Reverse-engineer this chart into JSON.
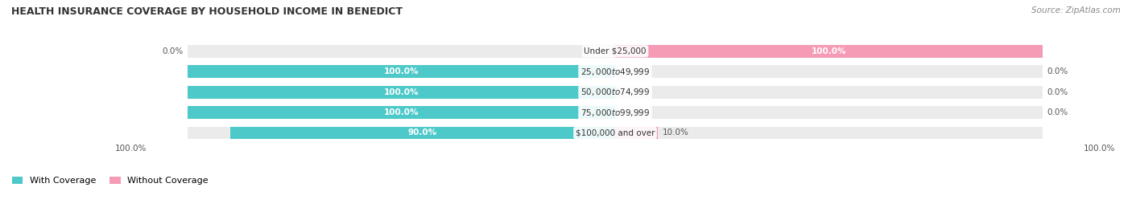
{
  "title": "HEALTH INSURANCE COVERAGE BY HOUSEHOLD INCOME IN BENEDICT",
  "source": "Source: ZipAtlas.com",
  "categories": [
    "Under $25,000",
    "$25,000 to $49,999",
    "$50,000 to $74,999",
    "$75,000 to $99,999",
    "$100,000 and over"
  ],
  "with_coverage": [
    0.0,
    100.0,
    100.0,
    100.0,
    90.0
  ],
  "without_coverage": [
    100.0,
    0.0,
    0.0,
    0.0,
    10.0
  ],
  "color_with": "#4ec9c9",
  "color_without": "#f59bb5",
  "bg_bar": "#ebebeb",
  "label_white": "#ffffff",
  "label_dark": "#555555",
  "figsize": [
    14.06,
    2.69
  ],
  "dpi": 100
}
